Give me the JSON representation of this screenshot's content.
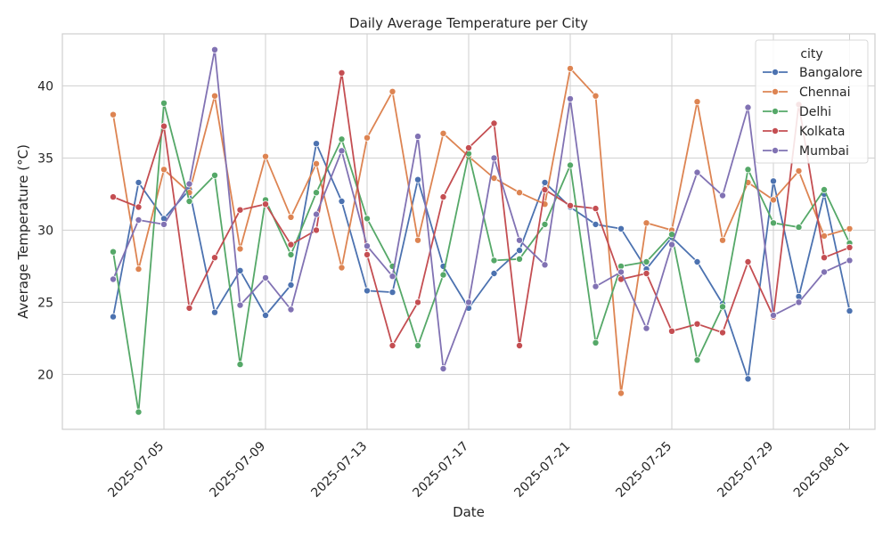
{
  "chart_data": {
    "type": "line",
    "title": "Daily Average Temperature per City",
    "xlabel": "Date",
    "ylabel": "Average Temperature (°C)",
    "xlim": [
      "2025-07-01",
      "2025-08-02"
    ],
    "ylim": [
      16.2,
      43.6
    ],
    "xticks": [
      "2025-07-05",
      "2025-07-09",
      "2025-07-13",
      "2025-07-17",
      "2025-07-21",
      "2025-07-25",
      "2025-07-29",
      "2025-08-01"
    ],
    "yticks": [
      20,
      25,
      30,
      35,
      40
    ],
    "grid": true,
    "legend": {
      "title": "city",
      "position": "top-right"
    },
    "x": [
      "2025-07-03",
      "2025-07-04",
      "2025-07-05",
      "2025-07-06",
      "2025-07-07",
      "2025-07-08",
      "2025-07-09",
      "2025-07-10",
      "2025-07-11",
      "2025-07-12",
      "2025-07-13",
      "2025-07-14",
      "2025-07-15",
      "2025-07-16",
      "2025-07-17",
      "2025-07-18",
      "2025-07-19",
      "2025-07-20",
      "2025-07-21",
      "2025-07-22",
      "2025-07-23",
      "2025-07-24",
      "2025-07-25",
      "2025-07-26",
      "2025-07-27",
      "2025-07-28",
      "2025-07-29",
      "2025-07-30",
      "2025-07-31",
      "2025-08-01"
    ],
    "series": [
      {
        "name": "Bangalore",
        "color": "#4c72b0",
        "values": [
          24.0,
          33.3,
          30.8,
          32.8,
          24.3,
          27.2,
          24.1,
          26.2,
          36.0,
          32.0,
          25.8,
          25.7,
          33.5,
          27.5,
          24.6,
          27.0,
          28.6,
          33.3,
          31.6,
          30.4,
          30.1,
          27.3,
          29.5,
          27.8,
          24.9,
          19.7,
          33.4,
          25.4,
          32.5,
          24.4
        ]
      },
      {
        "name": "Chennai",
        "color": "#dd8452",
        "values": [
          38.0,
          27.3,
          34.2,
          32.6,
          39.3,
          28.7,
          35.1,
          30.9,
          34.6,
          27.4,
          36.4,
          39.6,
          29.3,
          36.7,
          35.1,
          33.6,
          32.6,
          31.8,
          41.2,
          39.3,
          18.7,
          30.5,
          30.0,
          38.9,
          29.3,
          33.3,
          32.1,
          34.1,
          29.6,
          30.1
        ]
      },
      {
        "name": "Delhi",
        "color": "#55a868",
        "values": [
          28.5,
          17.4,
          38.8,
          32.0,
          33.8,
          20.7,
          32.1,
          28.3,
          32.6,
          36.3,
          30.8,
          27.5,
          22.0,
          26.9,
          35.3,
          27.9,
          28.0,
          30.4,
          34.5,
          22.2,
          27.5,
          27.8,
          29.7,
          21.0,
          24.7,
          34.2,
          30.5,
          30.2,
          32.8,
          29.1
        ]
      },
      {
        "name": "Kolkata",
        "color": "#c44e52",
        "values": [
          32.3,
          31.6,
          37.2,
          24.6,
          28.1,
          31.4,
          31.8,
          29.0,
          30.0,
          40.9,
          28.3,
          22.0,
          25.0,
          32.3,
          35.7,
          37.4,
          22.0,
          32.8,
          31.7,
          31.5,
          26.6,
          27.0,
          23.0,
          23.5,
          22.9,
          27.8,
          24.0,
          38.7,
          28.1,
          28.8
        ]
      },
      {
        "name": "Mumbai",
        "color": "#8172b3",
        "values": [
          26.6,
          30.7,
          30.4,
          33.2,
          42.5,
          24.8,
          26.7,
          24.5,
          31.1,
          35.5,
          28.9,
          26.8,
          36.5,
          20.4,
          25.0,
          35.0,
          29.3,
          27.6,
          39.1,
          26.1,
          27.1,
          23.2,
          29.0,
          34.0,
          32.4,
          38.5,
          24.1,
          25.0,
          27.1,
          27.9
        ]
      }
    ]
  }
}
